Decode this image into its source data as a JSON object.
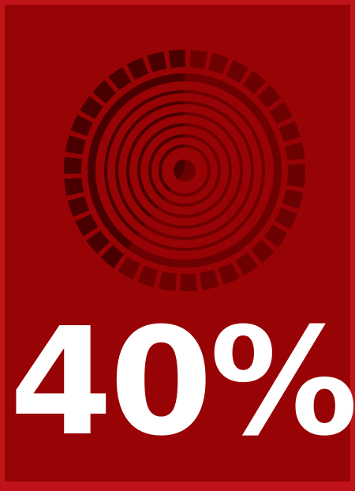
{
  "infographic": {
    "percent_label": "40%",
    "value_fraction": 0.4,
    "colors": {
      "background": "#980305",
      "border": "#c01418",
      "ring_dark": "#4a0000",
      "ring_light": "#6d0000",
      "text": "#ffffff"
    }
  }
}
